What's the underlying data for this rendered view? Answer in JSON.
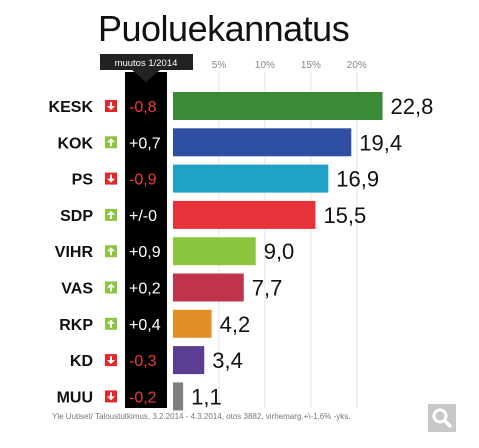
{
  "title": "Puoluekannatus",
  "change_header": "muutos 1/2014",
  "source": "Yle Uutiset/ Taloustutkimus, 3.2.2014 - 4.3.2014, otos 3882, virhemarg.+\\-1,6% -yks.",
  "search_icon": "search-icon",
  "chart_data": {
    "type": "bar",
    "orientation": "horizontal",
    "categories": [
      "KESK",
      "KOK",
      "PS",
      "SDP",
      "VIHR",
      "VAS",
      "RKP",
      "KD",
      "MUU"
    ],
    "values": [
      22.8,
      19.4,
      16.9,
      15.5,
      9.0,
      7.7,
      4.2,
      3.4,
      1.1
    ],
    "value_labels": [
      "22,8",
      "19,4",
      "16,9",
      "15,5",
      "9,0",
      "7,7",
      "4,2",
      "3,4",
      "1,1"
    ],
    "changes": [
      "-0,8",
      "+0,7",
      "-0,9",
      "+/-0",
      "+0,9",
      "+0,2",
      "+0,4",
      "-0,3",
      "-0,2"
    ],
    "change_direction": [
      "down",
      "up",
      "down",
      "up",
      "up",
      "up",
      "up",
      "down",
      "down"
    ],
    "colors": [
      "#3a8a36",
      "#2f4fa2",
      "#1ea3c7",
      "#e63239",
      "#8cc63e",
      "#c1334d",
      "#e08f26",
      "#5c3f92",
      "#808080"
    ],
    "ticks": [
      5,
      10,
      15,
      20
    ],
    "tick_labels": [
      "5%",
      "10%",
      "15%",
      "20%"
    ],
    "xlim": [
      0,
      25
    ],
    "grid": true,
    "up_color": "#8cc63e",
    "down_color": "#e6252a",
    "down_text_color": "#ee3b3b"
  }
}
